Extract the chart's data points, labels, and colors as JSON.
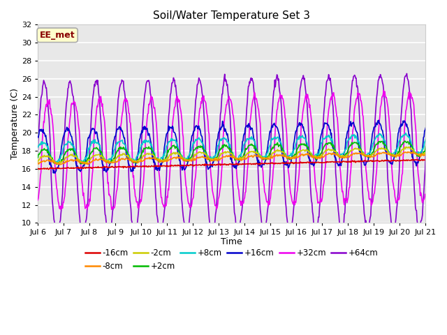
{
  "title": "Soil/Water Temperature Set 3",
  "xlabel": "Time",
  "ylabel": "Temperature (C)",
  "ylim": [
    10,
    32
  ],
  "yticks": [
    10,
    12,
    14,
    16,
    18,
    20,
    22,
    24,
    26,
    28,
    30,
    32
  ],
  "date_labels": [
    "Jul 6",
    "Jul 7",
    "Jul 8",
    "Jul 9",
    "Jul 10",
    "Jul 11",
    "Jul 12",
    "Jul 13",
    "Jul 14",
    "Jul 15",
    "Jul 16",
    "Jul 17",
    "Jul 18",
    "Jul 19",
    "Jul 20",
    "Jul 21"
  ],
  "annotation_text": "EE_met",
  "annotation_bg": "#ffffcc",
  "annotation_border": "#aaaaaa",
  "annotation_textcolor": "#880000",
  "series_colors": {
    "-16cm": "#dd0000",
    "-8cm": "#ff8800",
    "-2cm": "#cccc00",
    "+2cm": "#00bb00",
    "+8cm": "#00cccc",
    "+16cm": "#0000cc",
    "+32cm": "#ee00ee",
    "+64cm": "#8800cc"
  },
  "bg_color": "#e8e8e8",
  "grid_color": "#ffffff",
  "fig_bg": "#ffffff"
}
